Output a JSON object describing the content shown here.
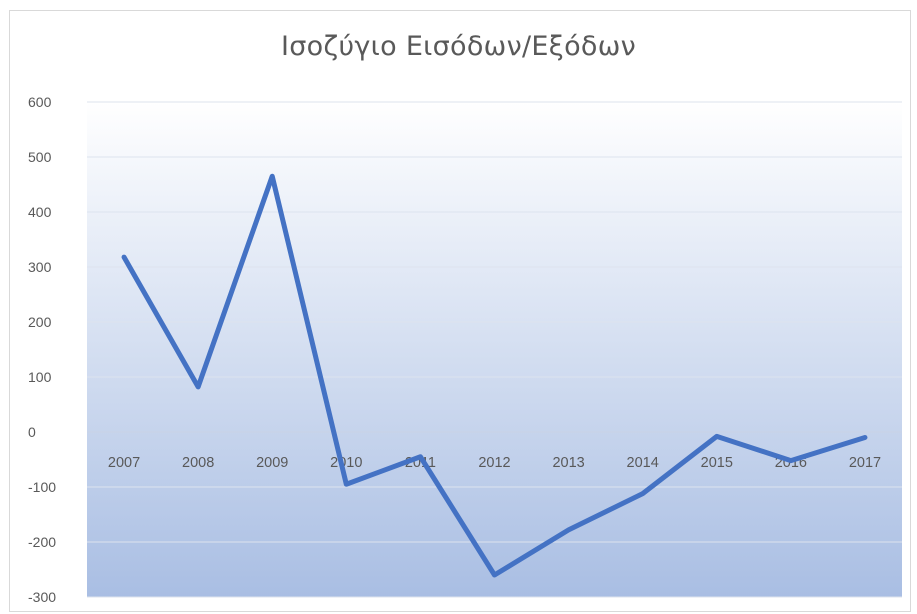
{
  "chart_data": {
    "type": "line",
    "title": "Ισοζύγιο Εισόδων/Εξόδων",
    "categories": [
      "2007",
      "2008",
      "2009",
      "2010",
      "2011",
      "2012",
      "2013",
      "2014",
      "2015",
      "2016",
      "2017"
    ],
    "series": [
      {
        "values": [
          318,
          82,
          465,
          -95,
          -45,
          -260,
          -178,
          -112,
          -8,
          -52,
          -10
        ],
        "color": "#4472C4"
      }
    ],
    "ylim": [
      -300,
      600
    ],
    "yticks": [
      "600",
      "500",
      "400",
      "300",
      "200",
      "100",
      "0",
      "-100",
      "-200",
      "-300"
    ],
    "xlabel": "",
    "ylabel": "",
    "grid": true,
    "legend": "none",
    "plot_gradient": [
      "#ffffff",
      "#a9bee3"
    ]
  }
}
